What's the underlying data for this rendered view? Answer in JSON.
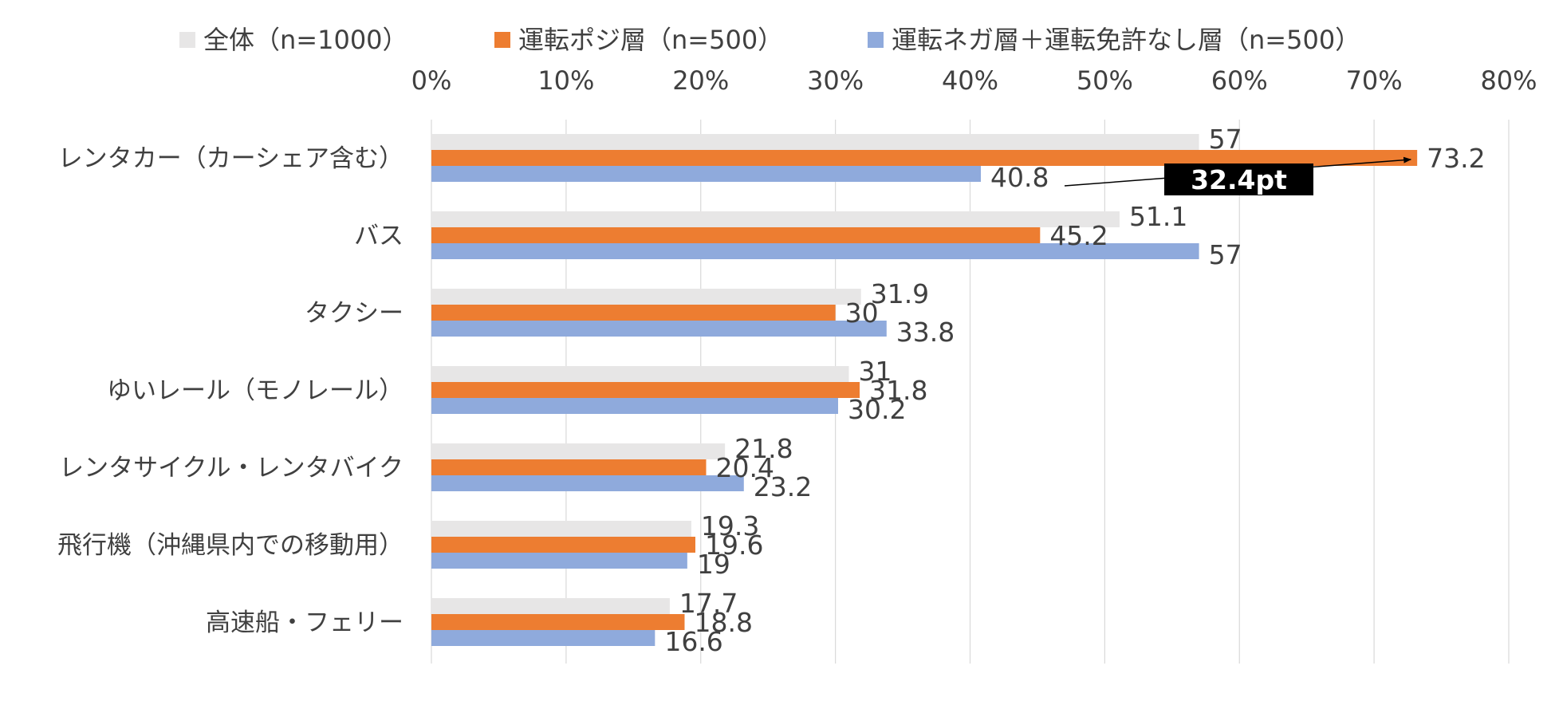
{
  "chart_data": {
    "type": "bar",
    "orientation": "horizontal",
    "categories": [
      "レンタカー（カーシェア含む）",
      "バス",
      "タクシー",
      "ゆいレール（モノレール）",
      "レンタサイクル・レンタバイク",
      "飛行機（沖縄県内での移動用）",
      "高速船・フェリー"
    ],
    "series": [
      {
        "name": "全体（n=1000）",
        "color": "#e7e6e6",
        "values": [
          57,
          51.1,
          31.9,
          31,
          21.8,
          19.3,
          17.7
        ]
      },
      {
        "name": "運転ポジ層（n=500）",
        "color": "#ed7d31",
        "values": [
          73.2,
          45.2,
          30,
          31.8,
          20.4,
          19.6,
          18.8
        ]
      },
      {
        "name": "運転ネガ層＋運転免許なし層（n=500）",
        "color": "#8faadc",
        "values": [
          40.8,
          57,
          33.8,
          30.2,
          23.2,
          19,
          16.6
        ]
      }
    ],
    "xlim": [
      0,
      80
    ],
    "x_ticks": [
      "0%",
      "10%",
      "20%",
      "30%",
      "40%",
      "50%",
      "60%",
      "70%",
      "80%"
    ],
    "grid": true,
    "legend_position": "top",
    "annotations": [
      {
        "text": "32.4pt",
        "from_category": "レンタカー（カーシェア含む）",
        "from_series": "運転ネガ層＋運転免許なし層（n=500）",
        "to_series": "運転ポジ層（n=500）",
        "label_bg": "#000000",
        "label_color": "#ffffff"
      }
    ]
  }
}
